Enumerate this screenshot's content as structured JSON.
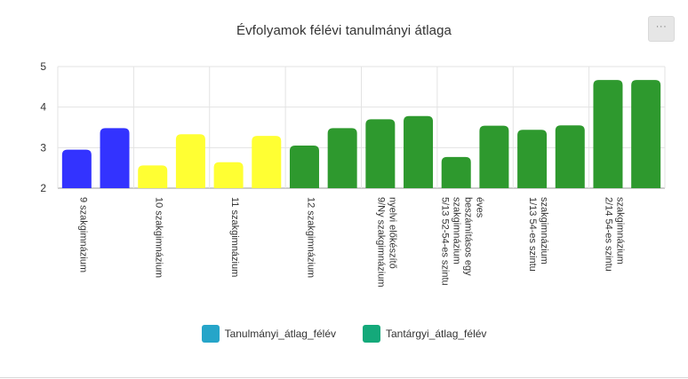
{
  "page": {
    "menu_icon": "more-horizontal-icon",
    "menu_label": "···"
  },
  "chart_data": {
    "type": "bar",
    "title": "Évfolyamok félévi tanulmányi átlaga",
    "xlabel": "",
    "ylabel": "",
    "ylim": [
      2,
      5
    ],
    "yticks": [
      "2",
      "3",
      "4",
      "5"
    ],
    "grid": true,
    "legend_position": "bottom",
    "groups": [
      {
        "label": "9 szakgimnázium"
      },
      {
        "label": "10 szakgimnázium"
      },
      {
        "label": "11 szakgimnázium"
      },
      {
        "label": "12 szakgimnázium"
      },
      {
        "label": "9/Ny szakgimnázium nyelvi előkészítő"
      },
      {
        "label": "5/13 52-54-es szintu szakgimnázium beszámításos egy éves"
      },
      {
        "label": "1/13 54-es szintu szakgimnázium"
      },
      {
        "label": "2/14 54-es szintu szakgimnázium"
      }
    ],
    "bars": [
      {
        "group": 0,
        "value": 2.95,
        "color": "#3333ff"
      },
      {
        "group": 0,
        "value": 3.48,
        "color": "#3333ff"
      },
      {
        "group": 1,
        "value": 2.56,
        "color": "#ffff33"
      },
      {
        "group": 1,
        "value": 3.33,
        "color": "#ffff33"
      },
      {
        "group": 2,
        "value": 2.64,
        "color": "#ffff33"
      },
      {
        "group": 2,
        "value": 3.29,
        "color": "#ffff33"
      },
      {
        "group": 3,
        "value": 3.05,
        "color": "#2e992e"
      },
      {
        "group": 3,
        "value": 3.48,
        "color": "#2e992e"
      },
      {
        "group": 4,
        "value": 3.7,
        "color": "#2e992e"
      },
      {
        "group": 4,
        "value": 3.78,
        "color": "#2e992e"
      },
      {
        "group": 5,
        "value": 2.77,
        "color": "#2e992e"
      },
      {
        "group": 5,
        "value": 3.54,
        "color": "#2e992e"
      },
      {
        "group": 6,
        "value": 3.44,
        "color": "#2e992e"
      },
      {
        "group": 6,
        "value": 3.55,
        "color": "#2e992e"
      },
      {
        "group": 7,
        "value": 4.67,
        "color": "#2e992e"
      },
      {
        "group": 7,
        "value": 4.67,
        "color": "#2e992e"
      }
    ],
    "legend": [
      {
        "name": "Tanulmányi_átlag_félév",
        "color": "#26a5c9"
      },
      {
        "name": "Tantárgyi_átlag_félév",
        "color": "#14a97a"
      }
    ]
  }
}
